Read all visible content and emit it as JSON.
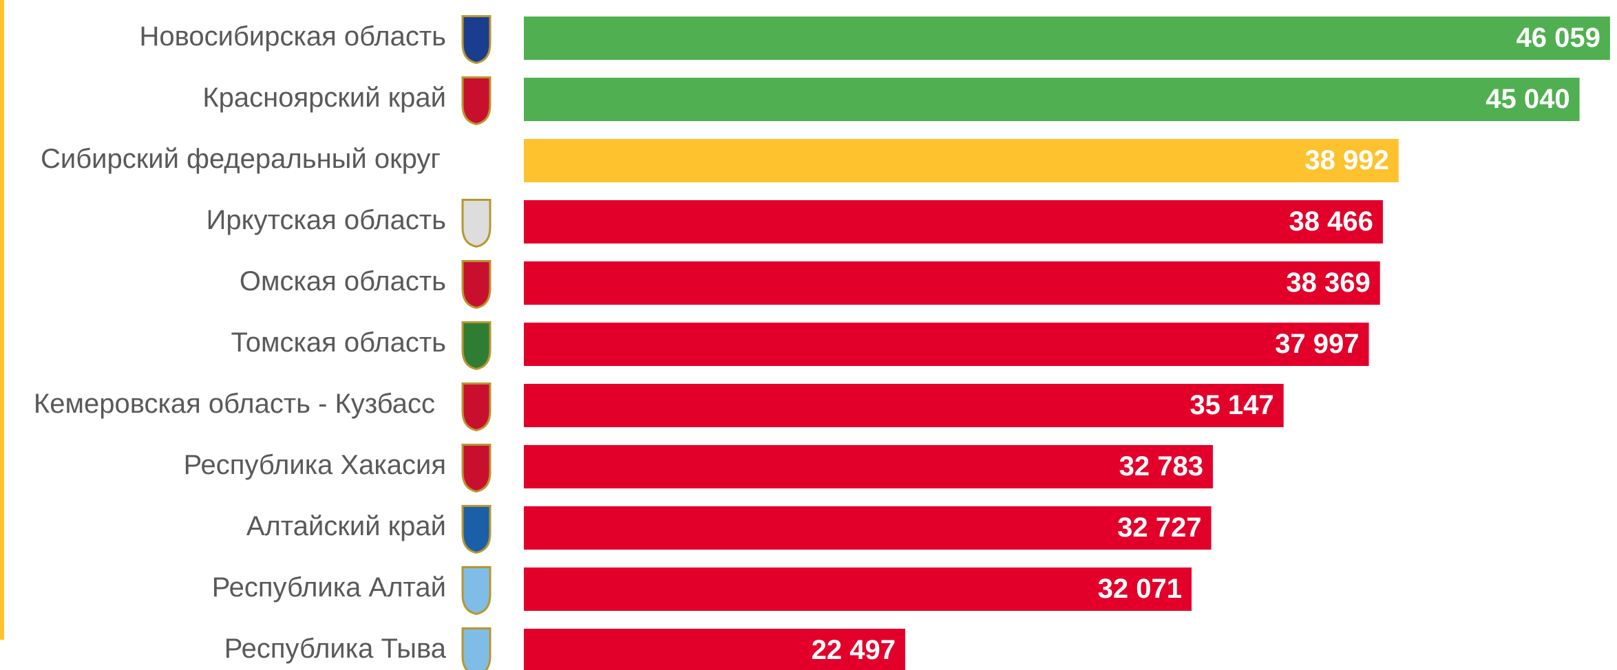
{
  "chart_data": {
    "type": "barh",
    "categories": [
      "Новосибирская область",
      "Красноярский край",
      "Сибирский федеральный округ",
      "Иркутская область",
      "Омская область",
      "Томская область",
      "Кемеровская область - Кузбасс",
      "Республика Хакасия",
      "Алтайский край",
      "Республика Алтай",
      "Республика Тыва"
    ],
    "values": [
      46059,
      45040,
      38992,
      38466,
      38369,
      37997,
      35147,
      32783,
      32727,
      32071,
      22497
    ],
    "value_labels": [
      "46 059",
      "45 040",
      "38 992",
      "38 466",
      "38 369",
      "37 997",
      "35 147",
      "32 783",
      "32 727",
      "32 071",
      "22 497"
    ],
    "colors": [
      "#50af50",
      "#50af50",
      "#fdc22e",
      "#e2002b",
      "#e2002b",
      "#e2002b",
      "#e2002b",
      "#e2002b",
      "#e2002b",
      "#e2002b",
      "#e2002b"
    ],
    "xlim": [
      9750,
      46200
    ]
  }
}
